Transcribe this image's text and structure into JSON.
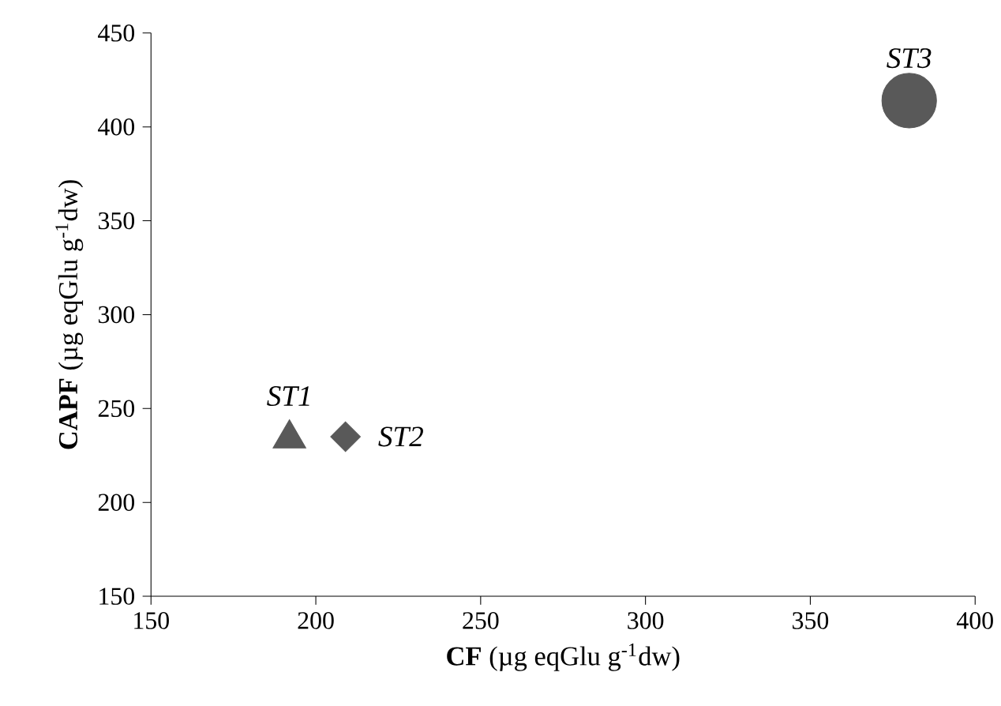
{
  "chart_data": {
    "type": "scatter",
    "xlabel": "**CF** (µg eqGlu g$^{-1}$dw)",
    "ylabel": "**CAPF**  (µg eqGlu g$^{-1}$dw)",
    "xlim": [
      150,
      400
    ],
    "xticks": [
      150,
      200,
      250,
      300,
      350,
      400
    ],
    "ylim": [
      150,
      450
    ],
    "yticks": [
      150,
      200,
      250,
      300,
      350,
      400,
      450
    ],
    "grid": false,
    "legend": false,
    "series": [
      {
        "name": "ST1",
        "color": "#595959",
        "marker": "triangle",
        "x": [
          192
        ],
        "values": [
          234
        ]
      },
      {
        "name": "ST2",
        "color": "#595959",
        "marker": "diamond",
        "x": [
          209
        ],
        "values": [
          235
        ]
      },
      {
        "name": "ST3",
        "color": "#595959",
        "marker": "circle",
        "x": [
          380
        ],
        "values": [
          414
        ]
      }
    ]
  }
}
